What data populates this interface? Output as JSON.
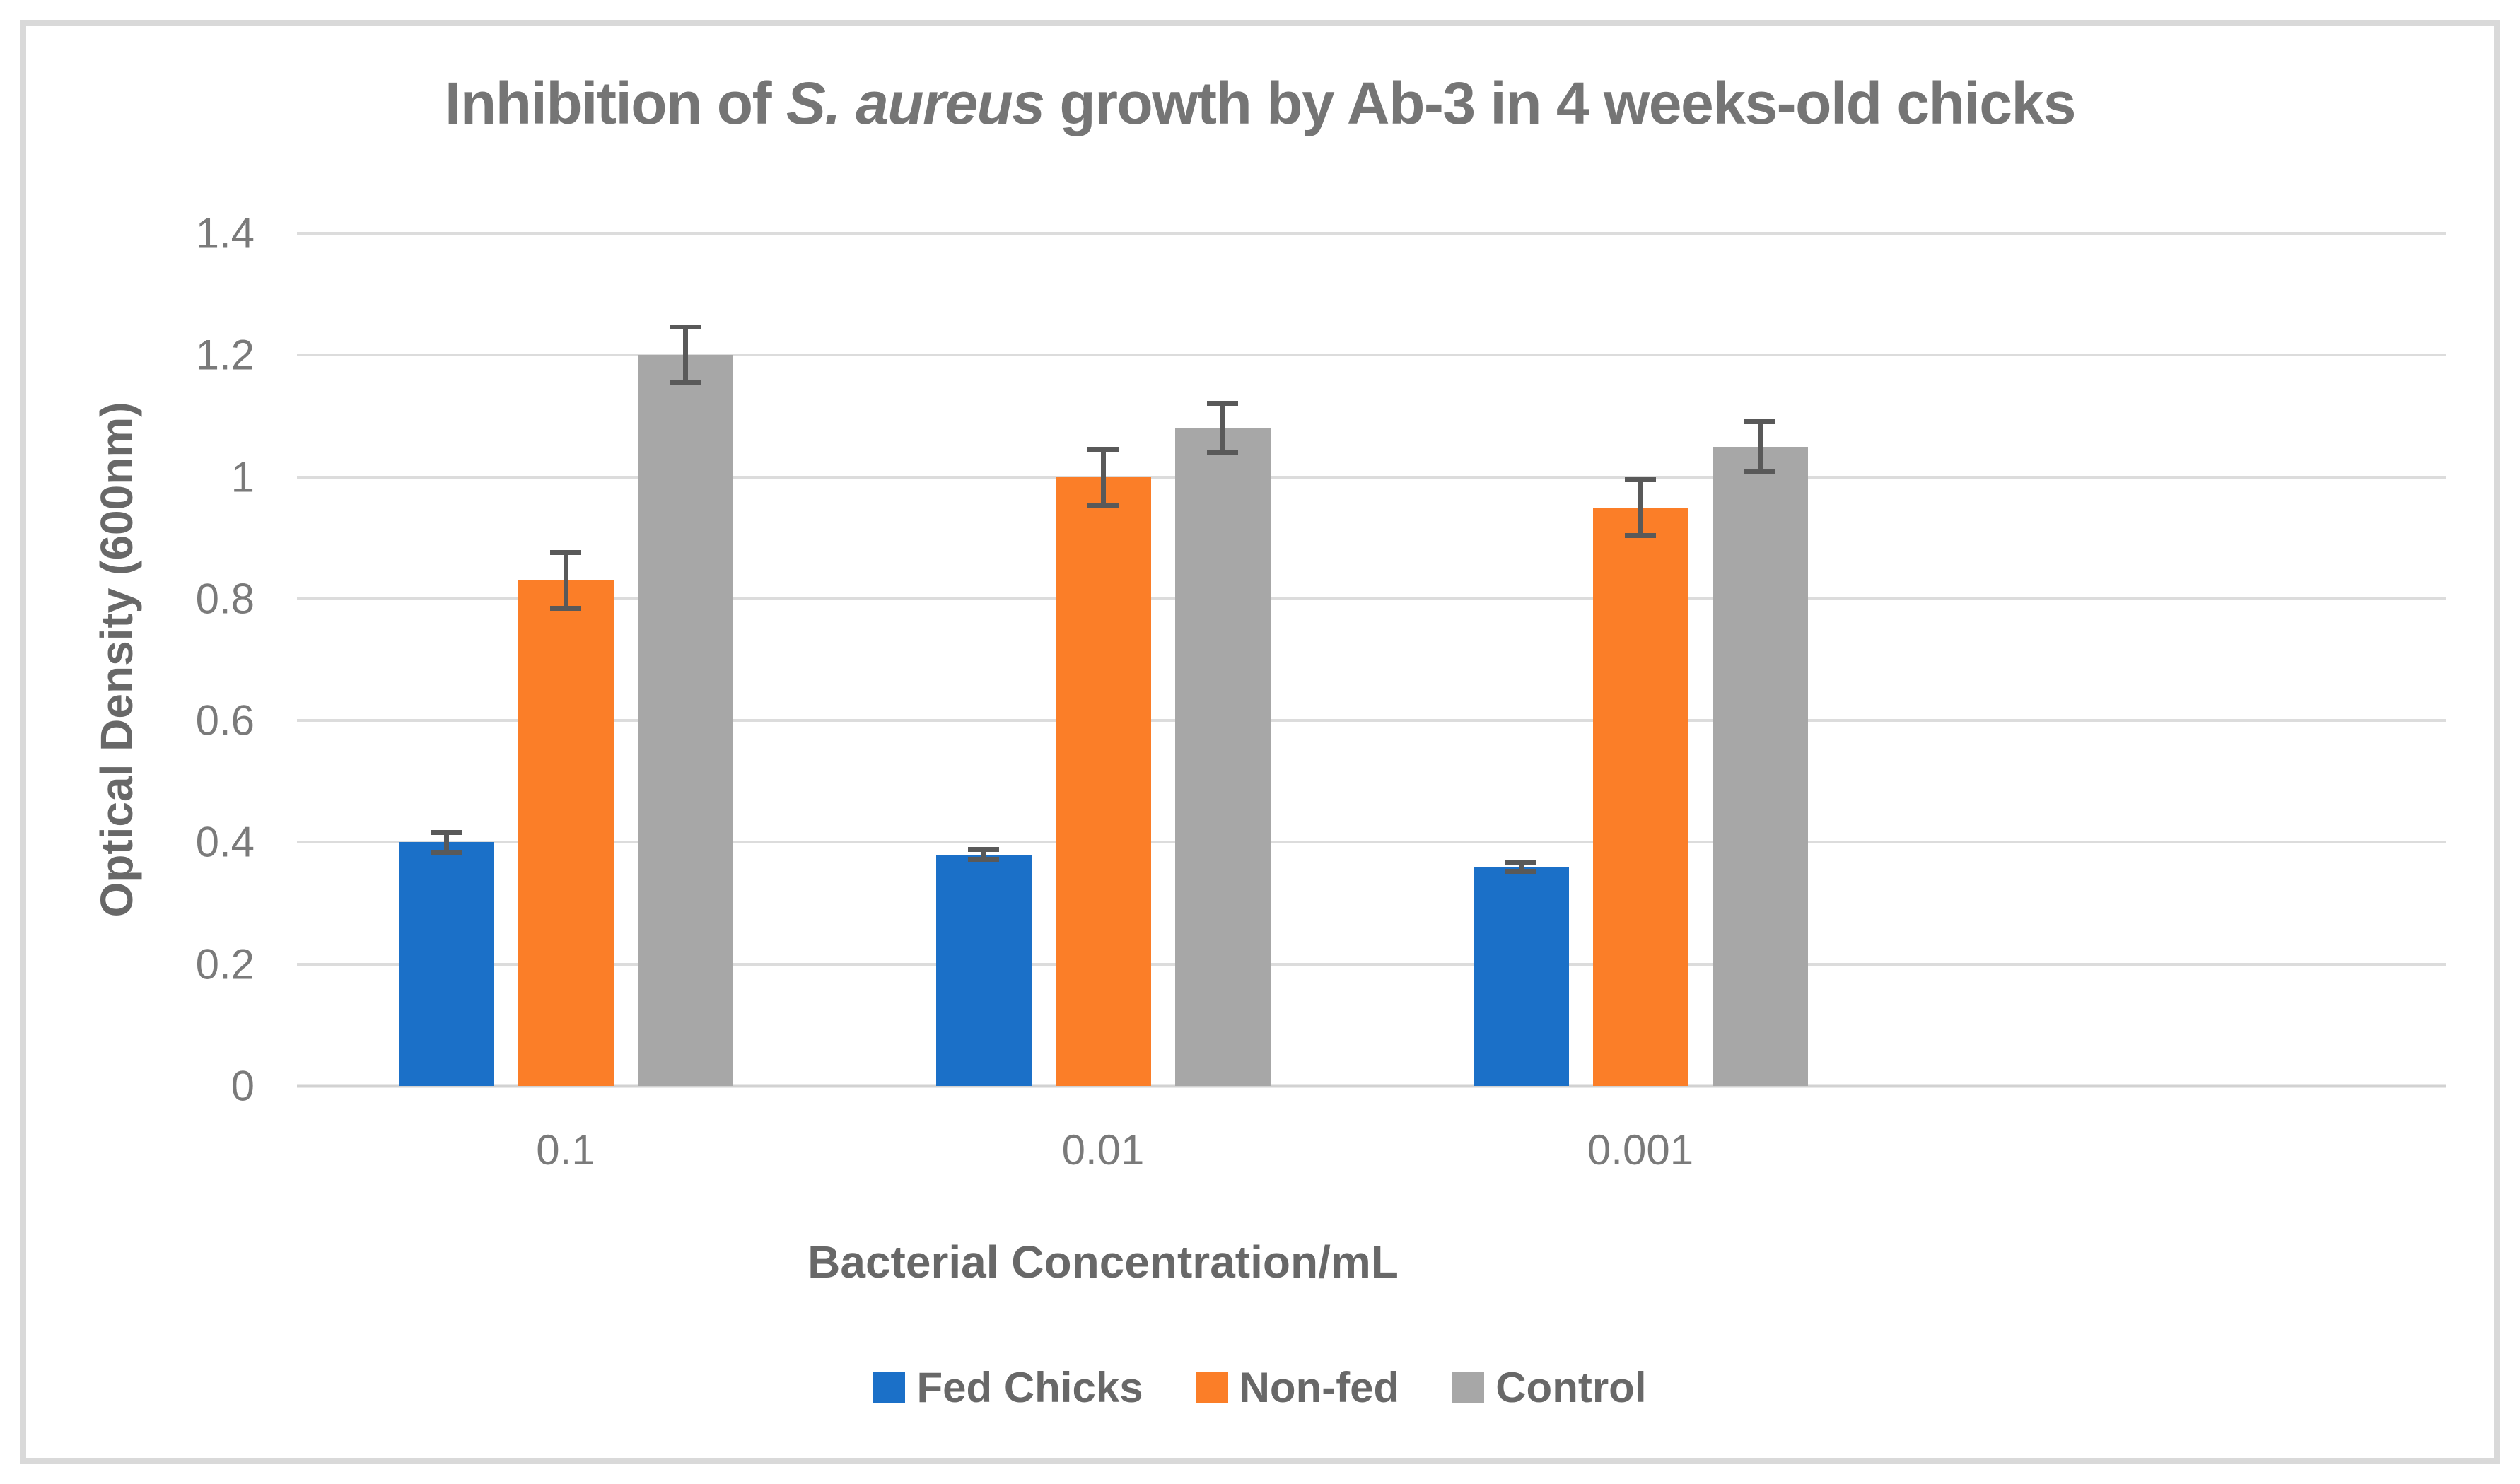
{
  "figure": {
    "background": "#FFFFFF",
    "border_color": "#D9D9D9"
  },
  "chart_data": {
    "type": "bar",
    "title": {
      "prefix": "Inhibition of ",
      "italic": "S. aureus",
      "suffix": " growth by Ab-3 in 4 weeks-old chicks",
      "full": "Inhibition of S. aureus growth by Ab-3 in 4 weeks-old chicks"
    },
    "xlabel": "Bacterial Concentration/mL",
    "ylabel": "Optical Density (600nm)",
    "categories": [
      "0.1",
      "0.01",
      "0.001"
    ],
    "category_slots": 4,
    "series": [
      {
        "name": "Fed Chicks",
        "color": "#1B70C8",
        "values": [
          0.4,
          0.38,
          0.36
        ],
        "errors": [
          0.02,
          0.012,
          0.012
        ]
      },
      {
        "name": "Non-fed",
        "color": "#FB7E28",
        "values": [
          0.83,
          1.0,
          0.95
        ],
        "errors": [
          0.05,
          0.05,
          0.05
        ]
      },
      {
        "name": "Control",
        "color": "#A7A7A7",
        "values": [
          1.2,
          1.08,
          1.05
        ],
        "errors": [
          0.05,
          0.045,
          0.045
        ]
      }
    ],
    "ylim": [
      0,
      1.4
    ],
    "yticks": [
      "0",
      "0.2",
      "0.4",
      "0.6",
      "0.8",
      "1",
      "1.2",
      "1.4"
    ],
    "grid": true,
    "legend_position": "bottom",
    "error_bar_color": "#595959"
  },
  "style": {
    "gridline_color": "#DCDCDC",
    "axis_line_color": "#D2D2D2",
    "title_color": "#757575",
    "tick_label_color": "#7A7A7A",
    "axis_title_color": "#686868",
    "legend_text_color": "#686868"
  }
}
